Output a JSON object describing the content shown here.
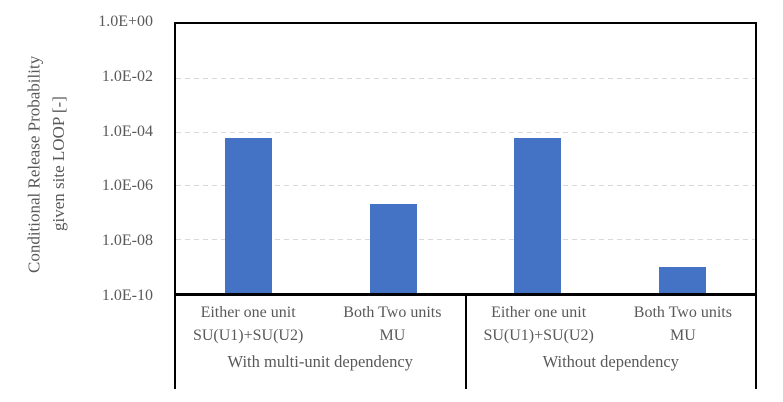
{
  "chart_data": {
    "type": "bar",
    "title": "",
    "ylabel": "Conditional Release Probability\ngiven site LOOP [-]",
    "xlabel": "",
    "y_scale": "log",
    "ylim": [
      1e-10,
      1.0
    ],
    "y_ticks": [
      "1.0E+00",
      "1.0E-02",
      "1.0E-04",
      "1.0E-06",
      "1.0E-08",
      "1.0E-10"
    ],
    "grid": "horizontal-dashed",
    "legend": "none",
    "bar_color": "#4472C4",
    "groups": [
      {
        "label": "With multi-unit dependency",
        "categories": [
          {
            "label": "Either one unit\nSU(U1)+SU(U2)",
            "value": 6e-05
          },
          {
            "label": "Both Two units\nMU",
            "value": 2e-07
          }
        ]
      },
      {
        "label": "Without dependency",
        "categories": [
          {
            "label": "Either one unit\nSU(U1)+SU(U2)",
            "value": 6e-05
          },
          {
            "label": "Both Two units\nMU",
            "value": 9e-10
          }
        ]
      }
    ]
  },
  "colors": {
    "bar": "#4472C4",
    "text": "#595959",
    "axis": "#000000",
    "gridline": "#d9d9d9"
  }
}
